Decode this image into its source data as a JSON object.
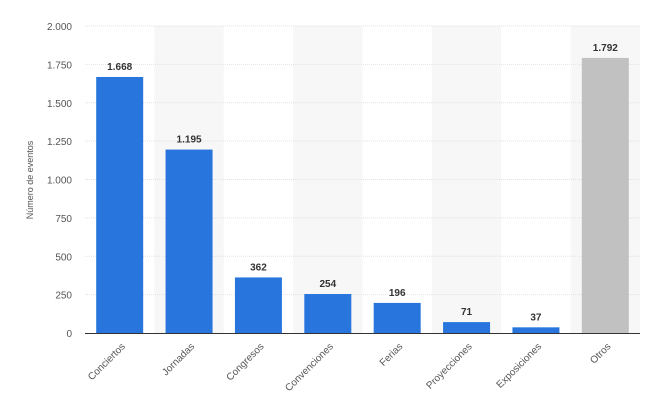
{
  "chart_data": {
    "type": "bar",
    "title": "",
    "xlabel": "",
    "ylabel": "Número de eventos",
    "ylim": [
      0,
      2000
    ],
    "yticks": [
      0,
      250,
      500,
      750,
      1000,
      1250,
      1500,
      1750,
      2000
    ],
    "ytick_labels": [
      "0",
      "250",
      "500",
      "750",
      "1.000",
      "1.250",
      "1.500",
      "1.750",
      "2.000"
    ],
    "categories": [
      "Conciertos",
      "Jornadas",
      "Congresos",
      "Convenciones",
      "Ferias",
      "Proyecciones",
      "Exposiciones",
      "Otros"
    ],
    "values": [
      1668,
      1195,
      362,
      254,
      196,
      71,
      37,
      1792
    ],
    "data_labels": [
      "1.668",
      "1.195",
      "362",
      "254",
      "196",
      "71",
      "37",
      "1.792"
    ],
    "bar_colors": [
      "#2876dd",
      "#2876dd",
      "#2876dd",
      "#2876dd",
      "#2876dd",
      "#2876dd",
      "#2876dd",
      "#c1c1c1"
    ],
    "grid": true
  }
}
